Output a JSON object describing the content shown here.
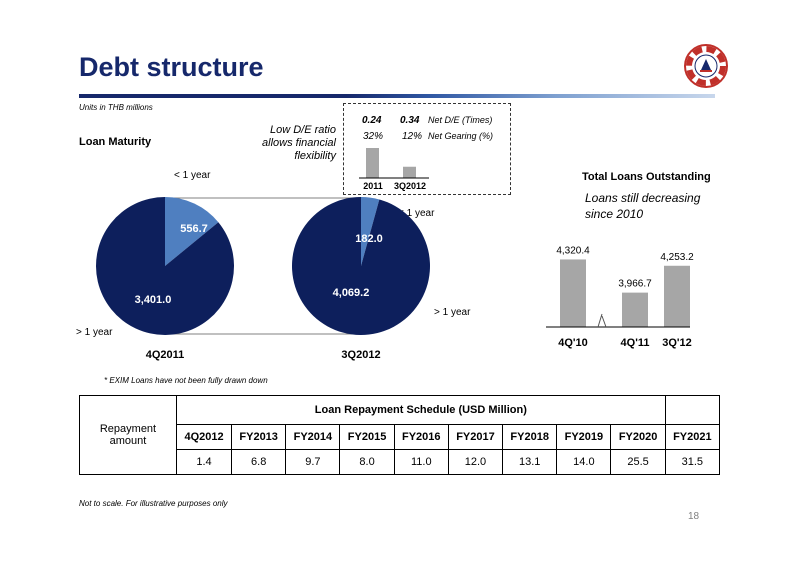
{
  "page_title": "Debt structure",
  "units_note": "Units in THB millions",
  "loan_maturity": {
    "heading": "Loan Maturity",
    "lt1_top": "< 1 year",
    "lt1_right": "< 1 year",
    "gt1_left": "> 1 year",
    "gt1_right": "> 1 year",
    "note": [
      "Low D/E ratio",
      "allows financial",
      "flexibility"
    ]
  },
  "de_inset": {
    "net_de": [
      "0.24",
      "0.34"
    ],
    "net_de_label": "Net D/E (Times)",
    "gearing": [
      "32%",
      "12%"
    ],
    "gearing_label": "Net Gearing (%)",
    "categories": [
      "2011",
      "3Q2012"
    ]
  },
  "total_loans": {
    "heading": "Total Loans Outstanding",
    "note": [
      "Loans still decreasing",
      "since 2010"
    ]
  },
  "exim_note": "* EXIM Loans have not been fully drawn down",
  "schedule": {
    "title": "Loan Repayment Schedule (USD Million)",
    "row_label": [
      "Repayment",
      "amount"
    ],
    "headers": [
      "4Q2012",
      "FY2013",
      "FY2014",
      "FY2015",
      "FY2016",
      "FY2017",
      "FY2018",
      "FY2019",
      "FY2020",
      "FY2021"
    ],
    "values": [
      "1.4",
      "6.8",
      "9.7",
      "8.0",
      "11.0",
      "12.0",
      "13.1",
      "14.0",
      "25.5",
      "31.5"
    ]
  },
  "footnote": "Not to scale.  For illustrative purposes only",
  "page_number": "18",
  "colors": {
    "dark_navy": "#0d1f5c",
    "light_blue": "#4f7fc0",
    "bar_gray": "#a6a6a6",
    "title_blue": "#16286b"
  },
  "chart_data": [
    {
      "type": "pie",
      "title": "4Q2011",
      "categories": [
        "< 1 year",
        "> 1 year"
      ],
      "values": [
        556.7,
        3401.0
      ],
      "data_labels": [
        "556.7",
        "3,401.0"
      ]
    },
    {
      "type": "pie",
      "title": "3Q2012",
      "categories": [
        "< 1 year",
        "> 1 year"
      ],
      "values": [
        182.0,
        4069.2
      ],
      "data_labels": [
        "182.0",
        "4,069.2"
      ]
    },
    {
      "type": "bar",
      "title": "Total Loans Outstanding",
      "categories": [
        "4Q'10",
        "4Q'11",
        "3Q'12"
      ],
      "values": [
        4320.4,
        3966.7,
        4253.2
      ],
      "data_labels": [
        "4,320.4",
        "3,966.7",
        "4,253.2"
      ],
      "axis_break": true
    },
    {
      "type": "bar",
      "categories": [
        "2011",
        "3Q2012"
      ],
      "values": [
        0.24,
        0.34
      ],
      "series_labels": [
        "Net D/E (Times)",
        "Net Gearing (%)"
      ],
      "gearing_values": [
        32,
        12
      ]
    }
  ]
}
